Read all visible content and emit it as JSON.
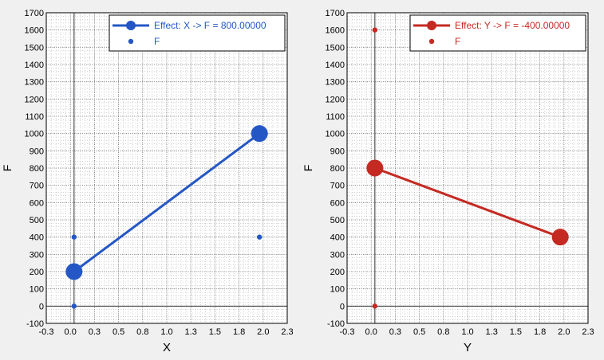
{
  "chart_data": [
    {
      "type": "line",
      "xlabel": "X",
      "ylabel": "F",
      "xlim": [
        -0.3,
        2.3
      ],
      "ylim": [
        -100,
        1700
      ],
      "x_ticks": [
        "-0.3",
        "0.0",
        "0.3",
        "0.5",
        "0.8",
        "1.0",
        "1.3",
        "1.5",
        "1.8",
        "2.0",
        "2.3"
      ],
      "y_ticks": [
        "-100",
        "0",
        "100",
        "200",
        "300",
        "400",
        "500",
        "600",
        "700",
        "800",
        "900",
        "1000",
        "1100",
        "1200",
        "1300",
        "1400",
        "1500",
        "1600",
        "1700"
      ],
      "grid": true,
      "legend_position": "top-right",
      "color": "#2457c5",
      "series": [
        {
          "name": "Effect: X -> F =  800.00000",
          "kind": "line",
          "points": [
            [
              0,
              200
            ],
            [
              2,
              1000
            ]
          ]
        },
        {
          "name": "F",
          "kind": "scatter",
          "points": [
            [
              0,
              400
            ],
            [
              0,
              0
            ],
            [
              2,
              400
            ]
          ]
        }
      ]
    },
    {
      "type": "line",
      "xlabel": "Y",
      "ylabel": "F",
      "xlim": [
        -0.3,
        2.3
      ],
      "ylim": [
        -100,
        1700
      ],
      "x_ticks": [
        "-0.3",
        "0.0",
        "0.3",
        "0.5",
        "0.8",
        "1.0",
        "1.3",
        "1.5",
        "1.8",
        "2.0",
        "2.3"
      ],
      "y_ticks": [
        "-100",
        "0",
        "100",
        "200",
        "300",
        "400",
        "500",
        "600",
        "700",
        "800",
        "900",
        "1000",
        "1100",
        "1200",
        "1300",
        "1400",
        "1500",
        "1600",
        "1700"
      ],
      "grid": true,
      "legend_position": "top-right",
      "color": "#c42a22",
      "series": [
        {
          "name": "Effect: Y -> F = -400.00000",
          "kind": "line",
          "points": [
            [
              0,
              800
            ],
            [
              2,
              400
            ]
          ]
        },
        {
          "name": "F",
          "kind": "scatter",
          "points": [
            [
              0,
              1600
            ],
            [
              0,
              0
            ]
          ]
        }
      ]
    }
  ]
}
